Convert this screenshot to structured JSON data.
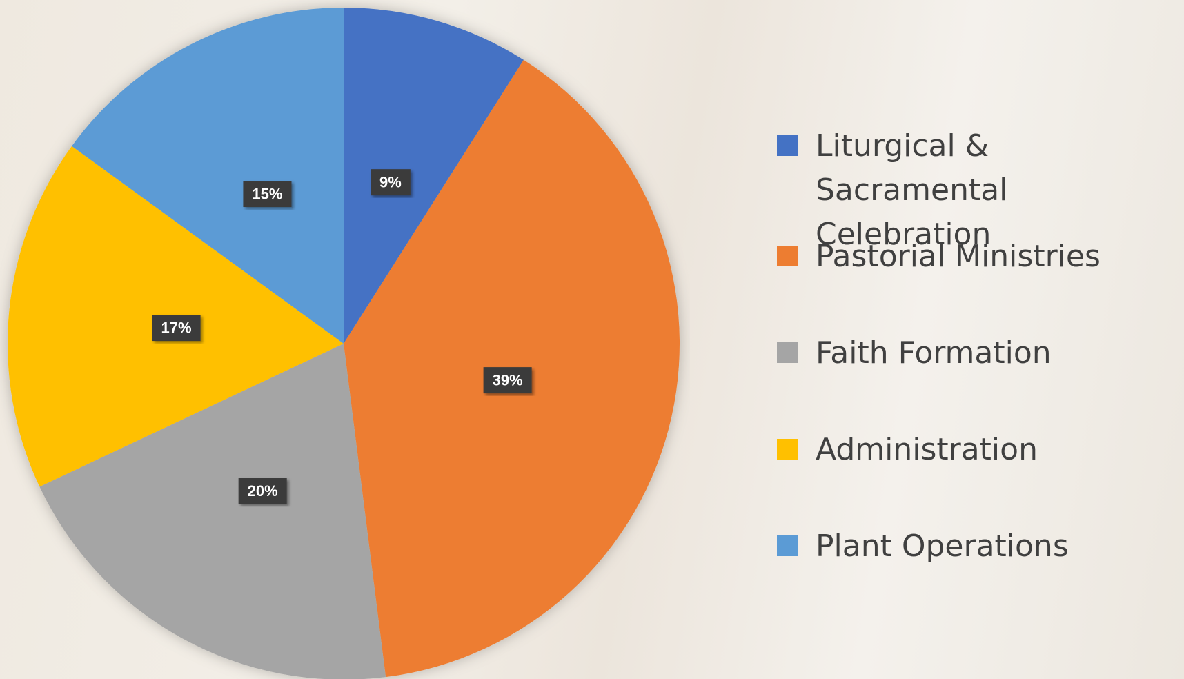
{
  "chart_data": {
    "type": "pie",
    "categories": [
      "Liturgical & Sacramental Celebration",
      "Pastorial Ministries",
      "Faith Formation",
      "Administration",
      "Plant Operations"
    ],
    "values": [
      9,
      39,
      20,
      17,
      15
    ],
    "value_labels": [
      "9%",
      "39%",
      "20%",
      "17%",
      "15%"
    ],
    "colors": [
      "#4472c4",
      "#ed7d31",
      "#a5a5a5",
      "#ffc000",
      "#5b9bd5"
    ],
    "legend": "right"
  }
}
